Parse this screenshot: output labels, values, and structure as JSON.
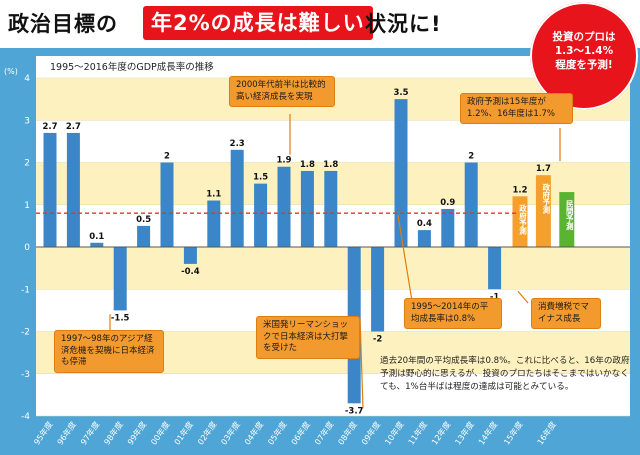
{
  "header": {
    "title_pre": "政治目標の",
    "title_highlight": "年2%の成長は難しい",
    "title_post": "状況に!"
  },
  "badge": {
    "line1": "投資のプロは",
    "line2": "1.3～1.4%",
    "line3": "程度を予測!"
  },
  "callouts": {
    "asia_crisis": "1997～98年のアジア経済危機を契機に日本経済も停滞",
    "early_2000s": "2000年代前半は比較的高い経済成長を実現",
    "lehman": "米国発リーマンショックで日本経済は大打撃を受けた",
    "gov_forecast": "政府予測は15年度が1.2%、16年度は1.7%",
    "average": "1995～2014年の平均成長率は0.8%",
    "tax_hike": "消費増税でマイナス成長"
  },
  "note": "過去20年間の平均成長率は0.8%。これに比べると、16年の政府予測は野心的に思えるが、投資のプロたちはそこまではいかなくても、1%台半ばは程度の達成は可能とみている。",
  "colors": {
    "bar_blue": "#3a86c8",
    "bar_orange": "#f5a02c",
    "bar_green": "#5bb431",
    "band_yellow": "#fdf2bf",
    "avg_line": "#e5332a",
    "title_highlight": "#e8141c",
    "callout_orange": "#f29a2e",
    "axis_panel": "#4fa6d6"
  },
  "chart_data": {
    "type": "bar",
    "subtitle": "1995～2016年度のGDP成長率の推移",
    "y_unit": "(%)",
    "ylim": [
      -4,
      4
    ],
    "yticks": [
      4,
      3,
      2,
      1,
      0,
      -1,
      -2,
      -3,
      -4
    ],
    "grid": "alternating horizontal bands",
    "reference_line": {
      "value": 0.8
    },
    "categories": [
      "95年度",
      "96年度",
      "97年度",
      "98年度",
      "99年度",
      "00年度",
      "01年度",
      "02年度",
      "03年度",
      "04年度",
      "05年度",
      "06年度",
      "07年度",
      "08年度",
      "09年度",
      "10年度",
      "11年度",
      "12年度",
      "13年度",
      "14年度",
      "15年度",
      "16年度"
    ],
    "values": [
      2.7,
      2.7,
      0.1,
      -1.5,
      0.5,
      2,
      -0.4,
      1.1,
      2.3,
      1.5,
      1.9,
      1.8,
      1.8,
      -3.7,
      -2,
      3.5,
      0.4,
      0.9,
      2,
      -1,
      1.2,
      1.7
    ],
    "value_labels": [
      "2.7",
      "2.7",
      "0.1",
      "-1.5",
      "0.5",
      "2",
      "-0.4",
      "1.1",
      "2.3",
      "1.5",
      "1.9",
      "1.8",
      "1.8",
      "-3.7",
      "-2",
      "3.5",
      "0.4",
      "0.9",
      "2",
      "-1",
      "1.2",
      "1.7"
    ],
    "forecast_bars": [
      {
        "label": "政府予測",
        "value": 1.2,
        "category": "15年度"
      },
      {
        "label": "政府予測",
        "value": 1.7,
        "category": "16年度"
      },
      {
        "label": "民間予測",
        "value": 1.3,
        "category": "16年度"
      }
    ]
  }
}
